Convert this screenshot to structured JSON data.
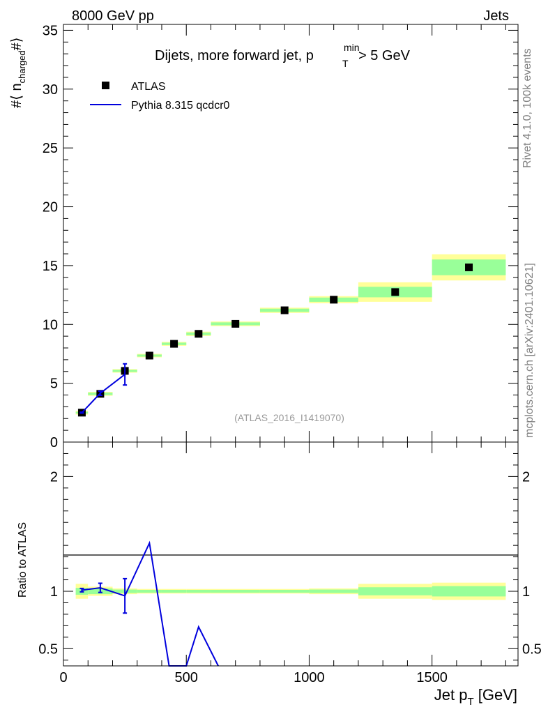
{
  "header": {
    "left": "8000 GeV pp",
    "right": "Jets"
  },
  "side_labels": {
    "rivet": "Rivet 4.1.0,  100k events",
    "mcplots": "mcplots.cern.ch [arXiv:2401.10621]"
  },
  "chart_data": {
    "type": "scatter",
    "title_main": "Dijets, more forward jet, p",
    "title_sup": "min",
    "title_sub": "T",
    "title_tail": " > 5 GeV",
    "watermark": "(ATLAS_2016_I1419070)",
    "xlabel_main": "Jet p",
    "xlabel_sub": "T",
    "xlabel_tail": " [GeV]",
    "ylabel_prefix": "#⟨ n",
    "ylabel_sub": "charged",
    "ylabel_suffix": "#⟩",
    "ratio_ylabel": "Ratio to ATLAS",
    "xlim": [
      0,
      1850
    ],
    "ylim": [
      0,
      35.5
    ],
    "ratio_ylim": [
      0.35,
      2.3
    ],
    "x_ticks": [
      "0",
      "500",
      "1000",
      "1500"
    ],
    "x_tick_values": [
      0,
      500,
      1000,
      1500
    ],
    "y_ticks": [
      "0",
      "5",
      "10",
      "15",
      "20",
      "25",
      "30",
      "35"
    ],
    "y_tick_values": [
      0,
      5,
      10,
      15,
      20,
      25,
      30,
      35
    ],
    "ratio_ticks": [
      "0.5",
      "1",
      "2"
    ],
    "ratio_tick_values": [
      0.5,
      1,
      2
    ],
    "legend": {
      "atlas": "ATLAS",
      "pythia": "Pythia 8.315 qcdcr0"
    },
    "atlas": {
      "name": "ATLAS",
      "x": [
        75,
        150,
        250,
        350,
        450,
        550,
        700,
        900,
        1100,
        1350,
        1650
      ],
      "xlow": [
        50,
        100,
        200,
        300,
        400,
        500,
        600,
        800,
        1000,
        1200,
        1500
      ],
      "xhigh": [
        100,
        200,
        300,
        400,
        500,
        600,
        800,
        1000,
        1200,
        1500,
        1800
      ],
      "y": [
        2.5,
        4.1,
        6.05,
        7.35,
        8.35,
        9.2,
        10.05,
        11.2,
        12.1,
        12.75,
        14.85
      ],
      "stat_rel": [
        0.03,
        0.025,
        0.015,
        0.012,
        0.012,
        0.012,
        0.012,
        0.012,
        0.015,
        0.035,
        0.045
      ],
      "tot_rel": [
        0.065,
        0.04,
        0.025,
        0.02,
        0.02,
        0.02,
        0.02,
        0.02,
        0.025,
        0.065,
        0.075
      ]
    },
    "pythia": {
      "name": "Pythia 8.315 qcdcr0",
      "x": [
        75,
        150,
        250
      ],
      "y": [
        2.5,
        4.15,
        5.75
      ],
      "err": [
        0.04,
        0.18,
        0.9
      ],
      "ratio_x": [
        75,
        150,
        250,
        350,
        430,
        500,
        550,
        630
      ],
      "ratio_y": [
        1.01,
        1.03,
        0.96,
        1.42,
        0.35,
        0.35,
        0.69,
        0.35
      ],
      "ratio_err": [
        0.015,
        0.04,
        0.15,
        0,
        0,
        0,
        0,
        0
      ]
    }
  }
}
